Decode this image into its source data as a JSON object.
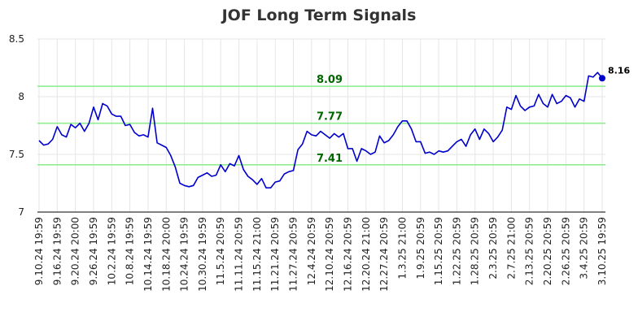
{
  "chart_data": {
    "type": "line",
    "title": "JOF Long Term Signals",
    "xlabel": "",
    "ylabel": "",
    "ylim": [
      7,
      8.5
    ],
    "y_ticks": [
      "7",
      "7.5",
      "8",
      "8.5"
    ],
    "x_tick_labels": [
      "9.10.24 19:59",
      "9.16.24 19:59",
      "9.20.24 20:00",
      "9.26.24 19:59",
      "10.2.24 19:59",
      "10.8.24 19:59",
      "10.14.24 19:59",
      "10.18.24 20:00",
      "10.24.24 19:59",
      "10.30.24 19:59",
      "11.5.24 20:59",
      "11.11.24 20:59",
      "11.15.24 21:00",
      "11.21.24 20:59",
      "11.27.24 20:59",
      "12.4.24 20:59",
      "12.10.24 20:59",
      "12.16.24 20:59",
      "12.20.24 21:00",
      "12.27.24 20:59",
      "1.3.25 21:00",
      "1.9.25 20:59",
      "1.15.25 20:59",
      "1.22.25 20:59",
      "1.28.25 20:59",
      "2.3.25 20:59",
      "2.7.25 21:00",
      "2.13.25 20:59",
      "2.20.25 20:59",
      "2.26.25 20:59",
      "3.4.25 20:59",
      "3.10.25 19:59"
    ],
    "grid": true,
    "series": [
      {
        "color": "#0000cc",
        "values": [
          7.62,
          7.58,
          7.59,
          7.63,
          7.74,
          7.67,
          7.65,
          7.76,
          7.73,
          7.77,
          7.7,
          7.77,
          7.91,
          7.8,
          7.94,
          7.92,
          7.85,
          7.83,
          7.83,
          7.75,
          7.76,
          7.69,
          7.66,
          7.67,
          7.65,
          7.9,
          7.6,
          7.58,
          7.56,
          7.49,
          7.39,
          7.25,
          7.23,
          7.22,
          7.23,
          7.3,
          7.32,
          7.34,
          7.31,
          7.32,
          7.41,
          7.35,
          7.42,
          7.4,
          7.49,
          7.37,
          7.31,
          7.28,
          7.24,
          7.29,
          7.21,
          7.21,
          7.26,
          7.27,
          7.33,
          7.35,
          7.36,
          7.54,
          7.59,
          7.7,
          7.67,
          7.66,
          7.7,
          7.67,
          7.64,
          7.68,
          7.65,
          7.68,
          7.55,
          7.55,
          7.44,
          7.55,
          7.53,
          7.5,
          7.52,
          7.66,
          7.6,
          7.62,
          7.67,
          7.74,
          7.79,
          7.79,
          7.72,
          7.61,
          7.61,
          7.51,
          7.52,
          7.5,
          7.53,
          7.52,
          7.53,
          7.57,
          7.61,
          7.63,
          7.57,
          7.67,
          7.72,
          7.63,
          7.72,
          7.68,
          7.61,
          7.65,
          7.71,
          7.91,
          7.89,
          8.01,
          7.92,
          7.88,
          7.91,
          7.92,
          8.02,
          7.94,
          7.91,
          8.02,
          7.94,
          7.96,
          8.01,
          7.99,
          7.91,
          7.98,
          7.96,
          8.18,
          8.17,
          8.21,
          8.16
        ]
      }
    ],
    "horizontal_lines": [
      {
        "value": 8.09,
        "label": "8.09",
        "color": "#90ee90"
      },
      {
        "value": 7.77,
        "label": "7.77",
        "color": "#90ee90"
      },
      {
        "value": 7.41,
        "label": "7.41",
        "color": "#90ee90"
      }
    ],
    "last_value_label": "8.16"
  }
}
